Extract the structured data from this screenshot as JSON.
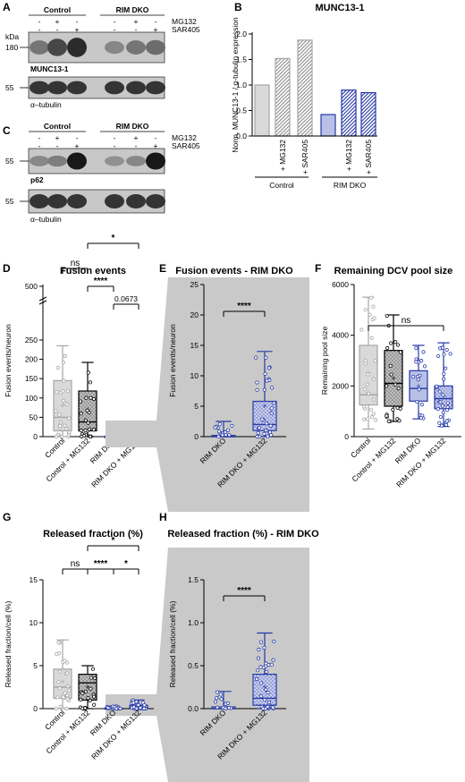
{
  "panels": {
    "A": "A",
    "B": "B",
    "C": "C",
    "D": "D",
    "E": "E",
    "F": "F",
    "G": "G",
    "H": "H"
  },
  "blots": {
    "A": {
      "group_labels": [
        "Control",
        "RIM DKO"
      ],
      "row_labels": [
        "MG132",
        "SAR405"
      ],
      "row_signs": [
        [
          "-",
          "+",
          "-",
          "-",
          "+",
          "-"
        ],
        [
          "-",
          "-",
          "+",
          "-",
          "-",
          "+"
        ]
      ],
      "kda_label": "kDa",
      "band_marks": [
        "180",
        "55"
      ],
      "band_names": [
        "MUNC13-1",
        "α–tubulin"
      ],
      "band_levels": [
        [
          0.45,
          0.7,
          0.85,
          0.35,
          0.45,
          0.5
        ],
        [
          0.8,
          0.8,
          0.8,
          0.8,
          0.8,
          0.8
        ]
      ]
    },
    "C": {
      "group_labels": [
        "Control",
        "RIM DKO"
      ],
      "row_labels": [
        "MG132",
        "SAR405"
      ],
      "row_signs": [
        [
          "-",
          "+",
          "-",
          "-",
          "+",
          "-"
        ],
        [
          "-",
          "-",
          "+",
          "-",
          "-",
          "+"
        ]
      ],
      "band_marks": [
        "55",
        "55"
      ],
      "band_names": [
        "p62",
        "α–tubulin"
      ],
      "band_levels": [
        [
          0.35,
          0.4,
          0.95,
          0.3,
          0.35,
          0.95
        ],
        [
          0.8,
          0.8,
          0.8,
          0.8,
          0.8,
          0.8
        ]
      ]
    }
  },
  "colors": {
    "control": "#a6a6a6",
    "control_light": "#d9d9d9",
    "rim": "#2438a6",
    "rim_light": "#b8c0e6",
    "shade": "#c9c9c9"
  },
  "chart_data": [
    {
      "panel": "B",
      "type": "bar",
      "title": "MUNC13-1",
      "ylabel": "Norm. MUNC13-1 / α-tubulin expression",
      "categories": [
        "",
        "+ MG132",
        "+ SAR405",
        "",
        "+ MG132",
        "+ SAR405"
      ],
      "values": [
        1.0,
        1.52,
        1.88,
        0.42,
        0.9,
        0.85
      ],
      "groups": [
        "Control",
        "RIM DKO"
      ],
      "yticks": [
        "0.0",
        "0.5",
        "1.0",
        "1.5",
        "2.0"
      ],
      "ylim": [
        0,
        2.0
      ]
    },
    {
      "panel": "D",
      "type": "box",
      "title": "Fusion events",
      "ylabel": "Fusion events/neuron",
      "categories": [
        "Control",
        "Control + MG132",
        "RIM DKO",
        "RIM DKO + MG132"
      ],
      "yticks": [
        "0",
        "50",
        "100",
        "150",
        "200",
        "250",
        "500"
      ],
      "ylim": [
        0,
        500
      ],
      "axis_break": [
        250,
        400
      ],
      "boxes": [
        {
          "min": 0,
          "q1": 15,
          "median": 50,
          "q3": 145,
          "max": 235,
          "mean": 80
        },
        {
          "min": 0,
          "q1": 15,
          "median": 38,
          "q3": 118,
          "max": 192,
          "mean": 70
        },
        {
          "min": 0,
          "q1": 0,
          "median": 0,
          "q3": 0,
          "max": 3,
          "mean": 0.5
        },
        {
          "min": 0,
          "q1": 0,
          "median": 2,
          "q3": 8,
          "max": 20,
          "mean": 5
        }
      ],
      "significance": [
        {
          "pair": [
            1,
            3
          ],
          "label": "*"
        },
        {
          "pair": [
            0,
            1
          ],
          "label": "ns"
        },
        {
          "pair": [
            1,
            2
          ],
          "label": "****"
        },
        {
          "pair": [
            2,
            3
          ],
          "label": "0.0673"
        }
      ]
    },
    {
      "panel": "E",
      "type": "box",
      "title": "Fusion events - RIM DKO",
      "ylabel": "Fusion events/neuron",
      "categories": [
        "RIM DKO",
        "RIM DKO + MG132"
      ],
      "yticks": [
        "0",
        "5",
        "10",
        "15",
        "20",
        "25"
      ],
      "ylim": [
        0,
        25
      ],
      "boxes": [
        {
          "min": 0,
          "q1": 0,
          "median": 0,
          "q3": 0.2,
          "max": 2.5,
          "mean": 0.5
        },
        {
          "min": 0,
          "q1": 1.0,
          "median": 2.0,
          "q3": 5.8,
          "max": 14.0,
          "mean": 5.0
        }
      ],
      "significance": [
        {
          "pair": [
            0,
            1
          ],
          "label": "****"
        }
      ]
    },
    {
      "panel": "F",
      "type": "box",
      "title": "Remaining DCV pool size",
      "ylabel": "Remaining pool size",
      "categories": [
        "Control",
        "Control + MG132",
        "RIM DKO",
        "RIM DKO + MG132"
      ],
      "yticks": [
        "0",
        "2000",
        "4000",
        "6000"
      ],
      "ylim": [
        0,
        6000
      ],
      "boxes": [
        {
          "min": 300,
          "q1": 1250,
          "median": 1650,
          "q3": 3600,
          "max": 5500,
          "mean": 2500
        },
        {
          "min": 600,
          "q1": 1200,
          "median": 2100,
          "q3": 3400,
          "max": 4800,
          "mean": 2300
        },
        {
          "min": 700,
          "q1": 1400,
          "median": 1900,
          "q3": 2600,
          "max": 3600,
          "mean": 2000
        },
        {
          "min": 400,
          "q1": 1100,
          "median": 1500,
          "q3": 2000,
          "max": 3700,
          "mean": 1600
        }
      ],
      "significance": [
        {
          "pair": [
            0,
            3
          ],
          "label": "ns"
        }
      ]
    },
    {
      "panel": "G",
      "type": "box",
      "title": "Released fraction (%)",
      "ylabel": "Released fraction/cell (%)",
      "categories": [
        "Control",
        "Control + MG132",
        "RIM DKO",
        "RIM DKO + MG132"
      ],
      "yticks": [
        "0",
        "5",
        "10",
        "15"
      ],
      "ylim": [
        0,
        15
      ],
      "boxes": [
        {
          "min": 0,
          "q1": 1.2,
          "median": 2.5,
          "q3": 4.6,
          "max": 8.0,
          "mean": 3.1
        },
        {
          "min": 0,
          "q1": 1.0,
          "median": 3.0,
          "q3": 4.0,
          "max": 5.0,
          "mean": 2.5
        },
        {
          "min": 0,
          "q1": 0,
          "median": 0,
          "q3": 0.05,
          "max": 0.3,
          "mean": 0.05
        },
        {
          "min": 0,
          "q1": 0.05,
          "median": 0.1,
          "q3": 0.4,
          "max": 1.0,
          "mean": 0.2
        }
      ],
      "significance": [
        {
          "pair": [
            1,
            3
          ],
          "label": "*"
        },
        {
          "pair": [
            0,
            1
          ],
          "label": "ns"
        },
        {
          "pair": [
            1,
            2
          ],
          "label": "****"
        },
        {
          "pair": [
            2,
            3
          ],
          "label": "*"
        }
      ]
    },
    {
      "panel": "H",
      "type": "box",
      "title": "Released fraction (%) - RIM DKO",
      "ylabel": "Released fraction/cell (%)",
      "categories": [
        "RIM DKO",
        "RIM DKO + MG132"
      ],
      "yticks": [
        "0.0",
        "0.5",
        "1.0",
        "1.5"
      ],
      "ylim": [
        0,
        1.5
      ],
      "boxes": [
        {
          "min": 0,
          "q1": 0,
          "median": 0,
          "q3": 0.02,
          "max": 0.2,
          "mean": 0.02
        },
        {
          "min": 0,
          "q1": 0.04,
          "median": 0.12,
          "q3": 0.4,
          "max": 0.88,
          "mean": 0.25
        }
      ],
      "significance": [
        {
          "pair": [
            0,
            1
          ],
          "label": "****"
        }
      ]
    }
  ]
}
